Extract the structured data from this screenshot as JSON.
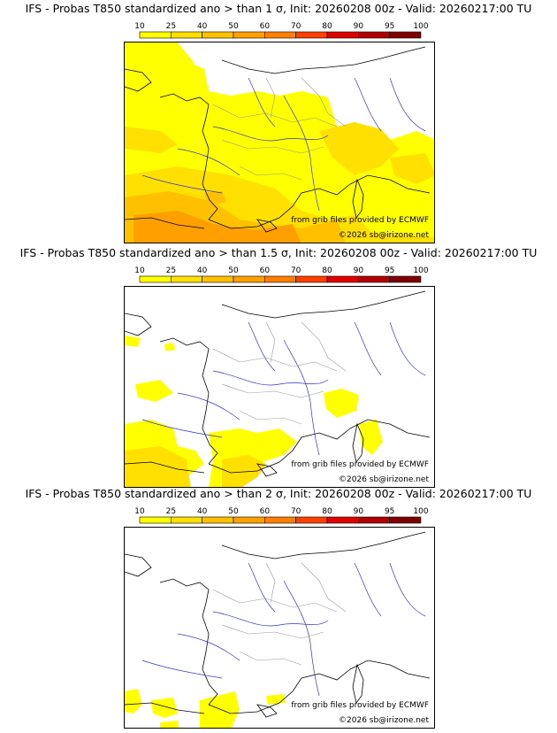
{
  "scale": {
    "ticks": [
      "10",
      "25",
      "40",
      "50",
      "60",
      "70",
      "80",
      "90",
      "95",
      "100"
    ],
    "colors": [
      "#ffff00",
      "#ffe000",
      "#ffc000",
      "#ffa000",
      "#ff8000",
      "#ff4000",
      "#e00000",
      "#b00000",
      "#800000"
    ]
  },
  "panels": [
    {
      "title": "IFS - Probas T850  standardized ano > than 1 σ, Init: 20260208 00z - Valid: 20260217:00 TU",
      "coverage": "high",
      "source": "from grib files provided by ECMWF",
      "copyright": "©2026 sb@irizone.net"
    },
    {
      "title": "IFS - Probas T850  standardized ano > than 1.5 σ, Init: 20260208 00z - Valid: 20260217:00 TU",
      "coverage": "medium",
      "source": "from grib files provided by ECMWF",
      "copyright": "©2026 sb@irizone.net"
    },
    {
      "title": "IFS - Probas T850  standardized ano > than 2 σ, Init: 20260208 00z - Valid: 20260217:00 TU",
      "coverage": "low",
      "source": "from grib files provided by ECMWF",
      "copyright": "©2026 sb@irizone.net"
    }
  ]
}
